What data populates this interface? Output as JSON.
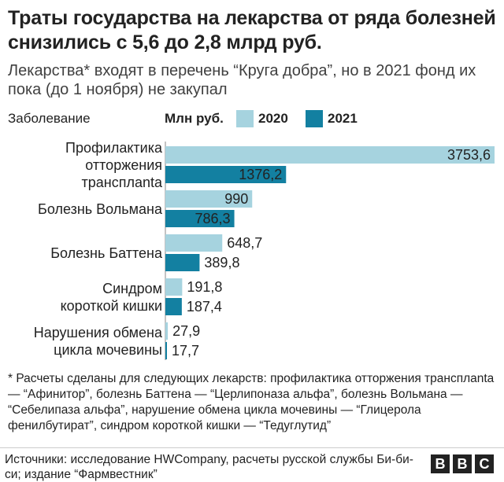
{
  "title": "Траты государства на лекарства от ряда болезней снизились с 5,6 до 2,8 млрд руб.",
  "subtitle": "Лекарства* входят в перечень “Круга добра”, но в 2021 фонд их пока (до 1 ноября) не закупал",
  "legend": {
    "category_header": "Заболевание",
    "unit": "Млн руб.",
    "items": [
      {
        "label": "2020",
        "color": "#a6d3df"
      },
      {
        "label": "2021",
        "color": "#1380a1"
      }
    ]
  },
  "chart_data": {
    "type": "bar",
    "orientation": "horizontal",
    "unit": "Млн руб.",
    "xlim": [
      0,
      3753.6
    ],
    "categories": [
      "Профилактика отторжения трансплanta",
      "Болезнь Вольмана",
      "Болезнь Баттена",
      "Синдром короткой кишки",
      "Нарушения обмена цикла мочевины"
    ],
    "category_lines": [
      [
        "Профилактика",
        "отторжения",
        "трансплanta"
      ],
      [
        "Болезнь Вольмана"
      ],
      [
        "Болезнь Баттена"
      ],
      [
        "Синдром",
        "короткой кишки"
      ],
      [
        "Нарушения обмена",
        "цикла мочевины"
      ]
    ],
    "series": [
      {
        "name": "2020",
        "color": "#a6d3df",
        "values": [
          3753.6,
          990,
          648.7,
          191.8,
          27.9
        ],
        "labels": [
          "3753,6",
          "990",
          "648,7",
          "191,8",
          "27,9"
        ]
      },
      {
        "name": "2021",
        "color": "#1380a1",
        "values": [
          1376.2,
          786.3,
          389.8,
          187.4,
          17.7
        ],
        "labels": [
          "1376,2",
          "786,3",
          "389,8",
          "187,4",
          "17,7"
        ]
      }
    ]
  },
  "footnote": "* Расчеты сделаны для следующих лекарств: профилактика отторжения трансплanta — “Афинитор”, болезнь Баттена — “Церлипоназа альфа”, болезнь Вольмана — “Себелипаза альфа”, нарушение обмена цикла мочевины — “Глицерола фенилбутират”, синдром короткой кишки — “Тедуглутид”",
  "source": "Источники: исследование HWCompany, расчеты русской службы Би-би-си; издание “Фармвестник”",
  "logo": "BBC"
}
